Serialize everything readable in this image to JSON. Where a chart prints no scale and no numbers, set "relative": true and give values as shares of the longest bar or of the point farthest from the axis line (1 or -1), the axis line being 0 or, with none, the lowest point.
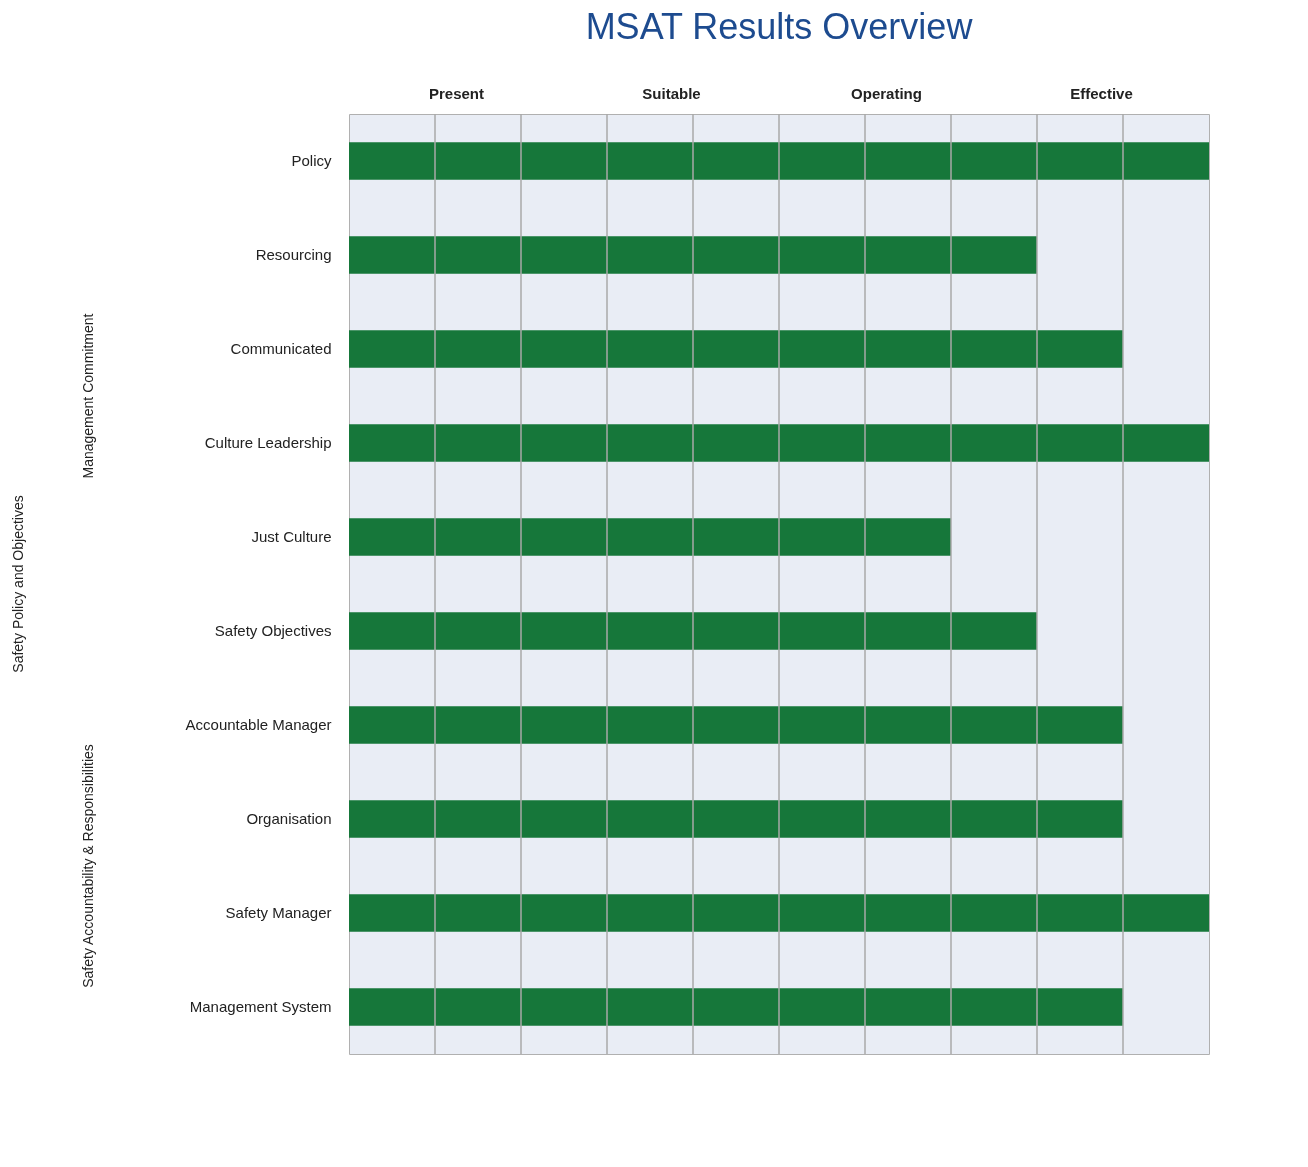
{
  "chart_data": {
    "type": "bar",
    "orientation": "horizontal",
    "relative": true,
    "title": "MSAT Results Overview",
    "annotations": [
      "Safety Policy and Objectives",
      "Management Commitment",
      "Safety Accountability & Responsibilities",
      "Present",
      "Suitable",
      "Operating",
      "Effective"
    ],
    "categories": [
      "Policy",
      "Resourcing",
      "Communicated",
      "Culture Leadership",
      "Just Culture",
      "Safety Objectives",
      "Accountable Manager",
      "Organisation",
      "Safety Manager",
      "Management System"
    ],
    "values": [
      1,
      0.8,
      0.9,
      1,
      0.7,
      0.8,
      0.9,
      0.9,
      1,
      0.9
    ],
    "color": "#16773a",
    "grid": "x"
  }
}
